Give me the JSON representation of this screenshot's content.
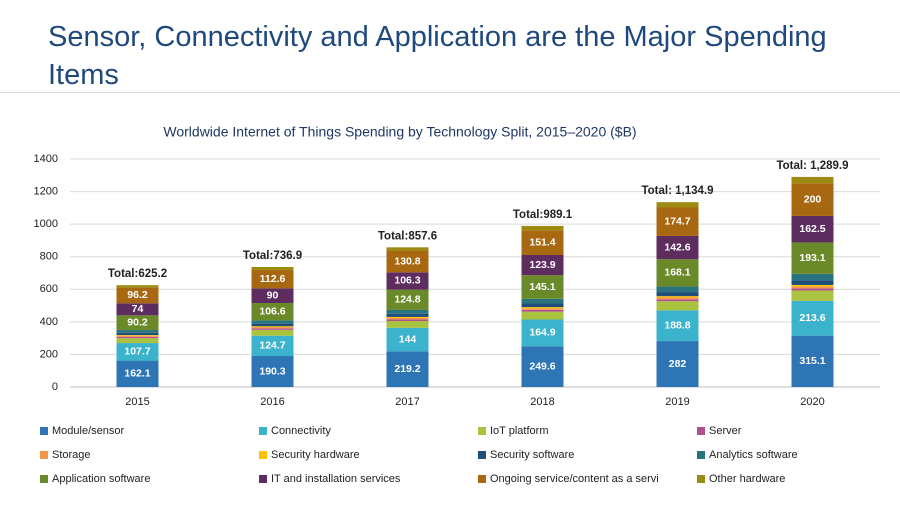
{
  "slide_title": "Sensor, Connectivity and Application are the Major Spending Items",
  "chart_data": {
    "type": "stacked_bar",
    "title": "Worldwide Internet of Things Spending by Technology Split, 2015–2020 ($B)",
    "categories": [
      "2015",
      "2016",
      "2017",
      "2018",
      "2019",
      "2020"
    ],
    "totals": [
      "Total:625.2",
      "Total:736.9",
      "Total:857.6",
      "Total:989.1",
      "Total: 1,134.9",
      "Total: 1,289.9"
    ],
    "ylim": [
      0,
      1400
    ],
    "yticks": [
      0,
      200,
      400,
      600,
      800,
      1000,
      1200,
      1400
    ],
    "grid": true,
    "legend": "bottom",
    "series": [
      {
        "name": "Module/sensor",
        "color": "#2e75b6",
        "labels": true,
        "values": [
          162.1,
          190.3,
          219.2,
          249.6,
          282,
          315.1
        ]
      },
      {
        "name": "Connectivity",
        "color": "#3bb3cc",
        "labels": true,
        "values": [
          107.7,
          124.7,
          144,
          164.9,
          188.8,
          213.6
        ]
      },
      {
        "name": "IoT platform",
        "color": "#a9c23f",
        "labels": false,
        "values": [
          30,
          36,
          42,
          48,
          56,
          64
        ]
      },
      {
        "name": "Server",
        "color": "#b3508f",
        "labels": false,
        "values": [
          8,
          9,
          10,
          11,
          12,
          13
        ]
      },
      {
        "name": "Storage",
        "color": "#f79646",
        "labels": false,
        "values": [
          7,
          8,
          9,
          10,
          11,
          12
        ]
      },
      {
        "name": "Security hardware",
        "color": "#ffc000",
        "labels": false,
        "values": [
          4,
          5,
          6,
          7,
          8,
          9
        ]
      },
      {
        "name": "Security software",
        "color": "#1f4e79",
        "labels": false,
        "values": [
          14,
          16,
          19,
          22,
          25,
          28
        ]
      },
      {
        "name": "Analytics software",
        "color": "#2a7480",
        "labels": false,
        "values": [
          17,
          20,
          24,
          29,
          34,
          40
        ]
      },
      {
        "name": "Application software",
        "color": "#6a8a2a",
        "labels": true,
        "values": [
          90.2,
          106.6,
          124.8,
          145.1,
          168.1,
          193.1
        ]
      },
      {
        "name": "IT and installation services",
        "color": "#5e2d5f",
        "labels": true,
        "values": [
          74,
          90,
          106.3,
          123.9,
          142.6,
          162.5
        ]
      },
      {
        "name": "Ongoing service/content as a servi",
        "color": "#a86812",
        "labels": true,
        "values": [
          96.2,
          112.6,
          130.8,
          151.4,
          174.7,
          200
        ]
      },
      {
        "name": "Other hardware",
        "color": "#9c8a12",
        "labels": false,
        "values": [
          15,
          18.7,
          22.5,
          27.2,
          32.7,
          39.6
        ]
      }
    ]
  }
}
